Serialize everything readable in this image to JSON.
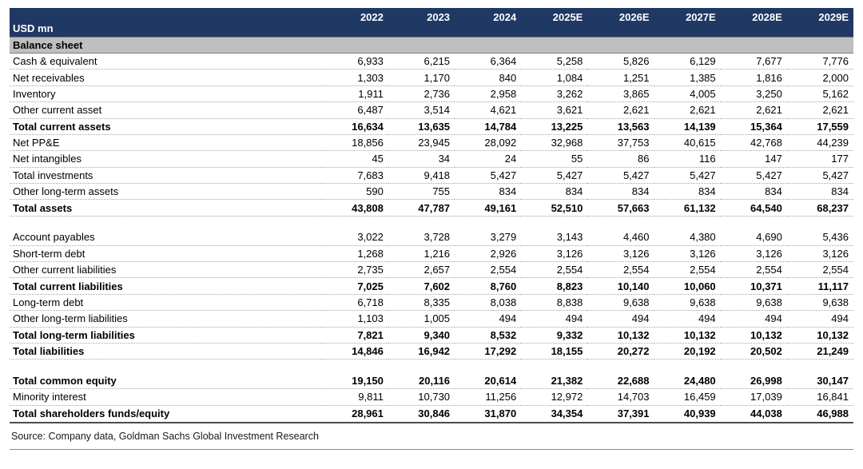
{
  "colors": {
    "header_bg": "#1F3864",
    "section_bg": "#BFBFBF"
  },
  "header": {
    "unit_label": "USD mn",
    "years": [
      "2022",
      "2023",
      "2024",
      "2025E",
      "2026E",
      "2027E",
      "2028E",
      "2029E"
    ]
  },
  "section": {
    "title": "Balance sheet"
  },
  "rows": [
    {
      "label": "Cash & equivalent",
      "bold": false,
      "values": [
        "6,933",
        "6,215",
        "6,364",
        "5,258",
        "5,826",
        "6,129",
        "7,677",
        "7,776"
      ]
    },
    {
      "label": "Net receivables",
      "bold": false,
      "values": [
        "1,303",
        "1,170",
        "840",
        "1,084",
        "1,251",
        "1,385",
        "1,816",
        "2,000"
      ]
    },
    {
      "label": "Inventory",
      "bold": false,
      "values": [
        "1,911",
        "2,736",
        "2,958",
        "3,262",
        "3,865",
        "4,005",
        "3,250",
        "5,162"
      ]
    },
    {
      "label": "Other current asset",
      "bold": false,
      "values": [
        "6,487",
        "3,514",
        "4,621",
        "3,621",
        "2,621",
        "2,621",
        "2,621",
        "2,621"
      ]
    },
    {
      "label": "Total current assets",
      "bold": true,
      "values": [
        "16,634",
        "13,635",
        "14,784",
        "13,225",
        "13,563",
        "14,139",
        "15,364",
        "17,559"
      ]
    },
    {
      "label": "Net PP&E",
      "bold": false,
      "values": [
        "18,856",
        "23,945",
        "28,092",
        "32,968",
        "37,753",
        "40,615",
        "42,768",
        "44,239"
      ]
    },
    {
      "label": "Net intangibles",
      "bold": false,
      "values": [
        "45",
        "34",
        "24",
        "55",
        "86",
        "116",
        "147",
        "177"
      ]
    },
    {
      "label": "Total investments",
      "bold": false,
      "values": [
        "7,683",
        "9,418",
        "5,427",
        "5,427",
        "5,427",
        "5,427",
        "5,427",
        "5,427"
      ]
    },
    {
      "label": "Other long-term assets",
      "bold": false,
      "values": [
        "590",
        "755",
        "834",
        "834",
        "834",
        "834",
        "834",
        "834"
      ]
    },
    {
      "label": "Total assets",
      "bold": true,
      "values": [
        "43,808",
        "47,787",
        "49,161",
        "52,510",
        "57,663",
        "61,132",
        "64,540",
        "68,237"
      ]
    },
    {
      "type": "blank"
    },
    {
      "label": "Account payables",
      "bold": false,
      "values": [
        "3,022",
        "3,728",
        "3,279",
        "3,143",
        "4,460",
        "4,380",
        "4,690",
        "5,436"
      ]
    },
    {
      "label": "Short-term debt",
      "bold": false,
      "values": [
        "1,268",
        "1,216",
        "2,926",
        "3,126",
        "3,126",
        "3,126",
        "3,126",
        "3,126"
      ]
    },
    {
      "label": "Other current liabilities",
      "bold": false,
      "values": [
        "2,735",
        "2,657",
        "2,554",
        "2,554",
        "2,554",
        "2,554",
        "2,554",
        "2,554"
      ]
    },
    {
      "label": "Total current liabilities",
      "bold": true,
      "values": [
        "7,025",
        "7,602",
        "8,760",
        "8,823",
        "10,140",
        "10,060",
        "10,371",
        "11,117"
      ]
    },
    {
      "label": "Long-term debt",
      "bold": false,
      "values": [
        "6,718",
        "8,335",
        "8,038",
        "8,838",
        "9,638",
        "9,638",
        "9,638",
        "9,638"
      ]
    },
    {
      "label": "Other long-term liabilities",
      "bold": false,
      "values": [
        "1,103",
        "1,005",
        "494",
        "494",
        "494",
        "494",
        "494",
        "494"
      ]
    },
    {
      "label": "Total long-term liabilities",
      "bold": true,
      "values": [
        "7,821",
        "9,340",
        "8,532",
        "9,332",
        "10,132",
        "10,132",
        "10,132",
        "10,132"
      ]
    },
    {
      "label": "Total liabilities",
      "bold": true,
      "values": [
        "14,846",
        "16,942",
        "17,292",
        "18,155",
        "20,272",
        "20,192",
        "20,502",
        "21,249"
      ]
    },
    {
      "type": "blank"
    },
    {
      "label": "Total common equity",
      "bold": true,
      "values": [
        "19,150",
        "20,116",
        "20,614",
        "21,382",
        "22,688",
        "24,480",
        "26,998",
        "30,147"
      ]
    },
    {
      "label": "Minority interest",
      "bold": false,
      "values": [
        "9,811",
        "10,730",
        "11,256",
        "12,972",
        "14,703",
        "16,459",
        "17,039",
        "16,841"
      ]
    },
    {
      "label": "Total shareholders funds/equity",
      "bold": true,
      "values": [
        "28,961",
        "30,846",
        "31,870",
        "34,354",
        "37,391",
        "40,939",
        "44,038",
        "46,988"
      ]
    }
  ],
  "footer": {
    "source": "Source: Company data, Goldman Sachs Global Investment Research"
  }
}
